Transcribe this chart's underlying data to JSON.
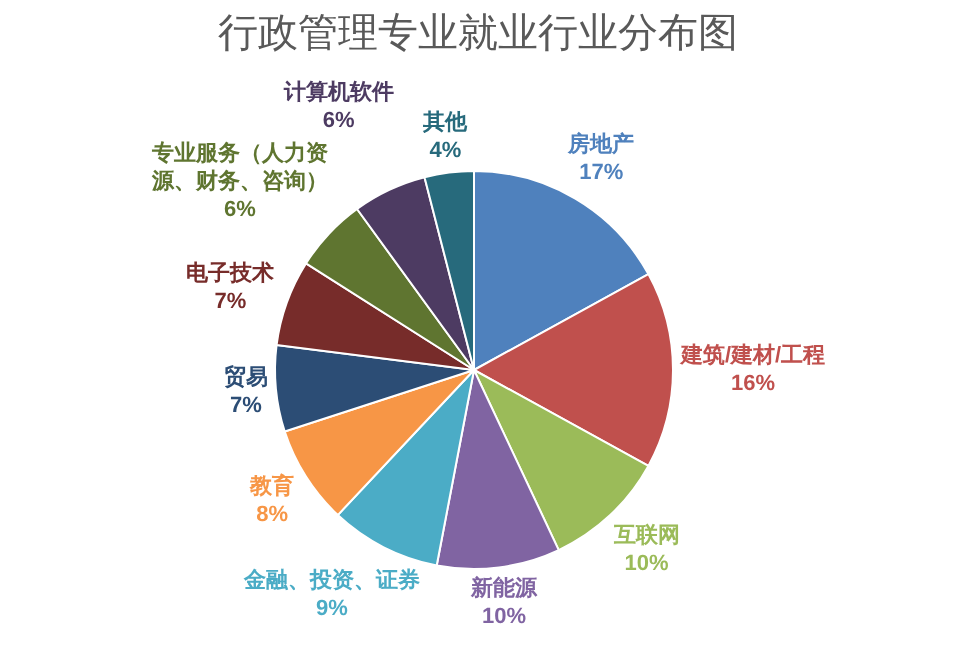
{
  "chart_data": {
    "type": "pie",
    "title": "行政管理专业就业行业分布图",
    "categories": [
      "房地产",
      "建筑/建材/工程",
      "互联网",
      "新能源",
      "金融、投资、证券",
      "教育",
      "贸易",
      "电子技术",
      "专业服务（人力资源、财务、咨询）",
      "计算机软件",
      "其他"
    ],
    "values": [
      17,
      16,
      10,
      10,
      9,
      8,
      7,
      7,
      6,
      6,
      4
    ],
    "value_labels": [
      "17%",
      "16%",
      "10%",
      "10%",
      "9%",
      "8%",
      "7%",
      "7%",
      "6%",
      "6%",
      "4%"
    ],
    "colors": [
      "#4f81bd",
      "#c0504d",
      "#9bbb59",
      "#8064a2",
      "#4bacc6",
      "#f79646",
      "#2c4d75",
      "#772c2a",
      "#5f7530",
      "#4d3b62",
      "#276a7c"
    ],
    "legend": false
  }
}
